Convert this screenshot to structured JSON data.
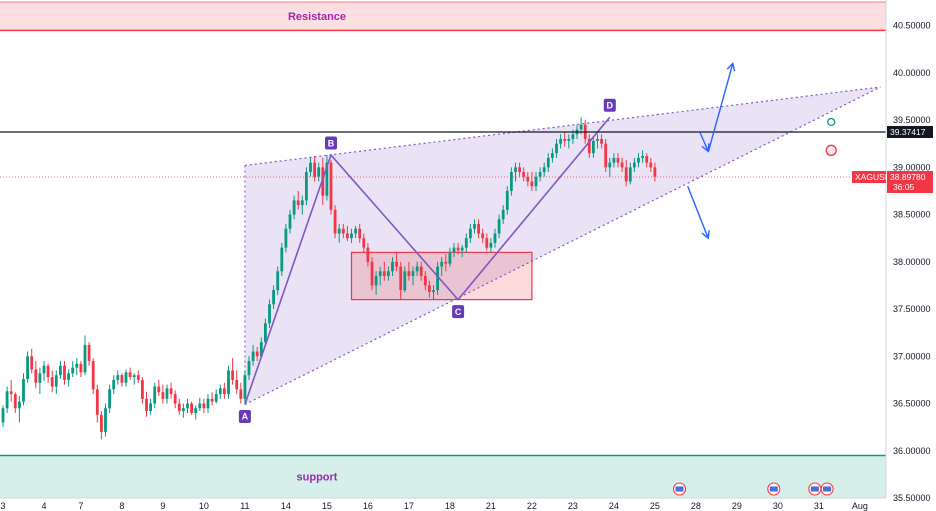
{
  "chart_data": {
    "type": "candlestick",
    "symbol": "XAGUSD",
    "last_price": "38.89780",
    "countdown": "36:05",
    "reference_line": "39.37417",
    "y_axis": {
      "range": [
        35.5,
        40.75
      ],
      "ticks": [
        "40.50000",
        "40.00000",
        "39.50000",
        "39.00000",
        "38.50000",
        "38.00000",
        "37.50000",
        "37.00000",
        "36.50000",
        "36.00000",
        "35.50000"
      ],
      "tick_values": [
        40.5,
        40.0,
        39.5,
        39.0,
        38.5,
        38.0,
        37.5,
        37.0,
        36.5,
        36.0,
        35.5
      ]
    },
    "x_axis": {
      "ticks": [
        "3",
        "4",
        "7",
        "8",
        "9",
        "10",
        "11",
        "14",
        "15",
        "16",
        "17",
        "18",
        "21",
        "22",
        "23",
        "24",
        "25",
        "28",
        "29",
        "30",
        "31",
        "Aug"
      ],
      "tick_index": [
        0,
        10,
        19,
        29,
        39,
        49,
        59,
        69,
        79,
        89,
        99,
        109,
        119,
        129,
        139,
        149,
        159,
        169,
        179,
        189,
        199,
        209
      ]
    },
    "zones": [
      {
        "label": "Resistance",
        "from": 40.45,
        "to": 40.75,
        "color": "#f23645"
      },
      {
        "label": "support",
        "from": 35.5,
        "to": 35.95,
        "color": "#089981"
      }
    ],
    "consolidation_box": {
      "x": [
        85,
        129
      ],
      "y": [
        37.6,
        38.1
      ]
    },
    "pattern_points": [
      {
        "label": "A",
        "x": 59,
        "y": 36.49
      },
      {
        "label": "B",
        "x": 80,
        "y": 39.13
      },
      {
        "label": "C",
        "x": 111,
        "y": 37.6
      },
      {
        "label": "D",
        "x": 148,
        "y": 39.53
      }
    ],
    "wedge": {
      "upper": {
        "x": [
          59,
          214
        ],
        "y": [
          39.02,
          39.85
        ]
      },
      "lower": {
        "x": [
          59,
          214
        ],
        "y": [
          36.49,
          39.85
        ]
      }
    },
    "scenario_arrows": [
      {
        "from": [
          172,
          39.16
        ],
        "to": [
          178,
          40.1
        ]
      },
      {
        "from": [
          170,
          39.37
        ],
        "to": [
          172,
          39.17
        ]
      },
      {
        "from": [
          167,
          38.8
        ],
        "to": [
          172,
          38.25
        ]
      }
    ],
    "markers": [
      {
        "x": 202,
        "y": 39.48,
        "color": "#089981"
      },
      {
        "x": 202,
        "y": 39.18,
        "color": "#f23645"
      }
    ],
    "event_icons_x": [
      165,
      188,
      198,
      201
    ],
    "candles": [
      [
        36.3,
        36.48,
        36.25,
        36.45
      ],
      [
        36.45,
        36.68,
        36.4,
        36.63
      ],
      [
        36.63,
        36.75,
        36.52,
        36.6
      ],
      [
        36.6,
        36.62,
        36.4,
        36.45
      ],
      [
        36.45,
        36.58,
        36.3,
        36.52
      ],
      [
        36.52,
        36.82,
        36.48,
        36.76
      ],
      [
        36.76,
        37.05,
        36.72,
        37.0
      ],
      [
        37.0,
        37.08,
        36.82,
        36.86
      ],
      [
        36.86,
        36.95,
        36.66,
        36.72
      ],
      [
        36.72,
        36.88,
        36.6,
        36.82
      ],
      [
        36.82,
        36.95,
        36.74,
        36.9
      ],
      [
        36.9,
        36.92,
        36.72,
        36.78
      ],
      [
        36.78,
        36.85,
        36.62,
        36.68
      ],
      [
        36.68,
        36.85,
        36.6,
        36.8
      ],
      [
        36.8,
        36.95,
        36.76,
        36.9
      ],
      [
        36.9,
        36.95,
        36.7,
        36.75
      ],
      [
        36.75,
        36.86,
        36.68,
        36.82
      ],
      [
        36.82,
        36.95,
        36.78,
        36.88
      ],
      [
        36.88,
        36.98,
        36.8,
        36.92
      ],
      [
        36.92,
        36.95,
        36.78,
        36.83
      ],
      [
        36.83,
        37.22,
        36.8,
        37.12
      ],
      [
        37.12,
        37.15,
        36.9,
        36.95
      ],
      [
        36.95,
        36.98,
        36.6,
        36.65
      ],
      [
        36.65,
        36.7,
        36.3,
        36.38
      ],
      [
        36.38,
        36.42,
        36.12,
        36.2
      ],
      [
        36.2,
        36.5,
        36.15,
        36.45
      ],
      [
        36.45,
        36.7,
        36.4,
        36.65
      ],
      [
        36.65,
        36.8,
        36.6,
        36.75
      ],
      [
        36.75,
        36.85,
        36.7,
        36.8
      ],
      [
        36.8,
        36.82,
        36.68,
        36.72
      ],
      [
        36.72,
        36.86,
        36.68,
        36.83
      ],
      [
        36.83,
        36.88,
        36.75,
        36.78
      ],
      [
        36.78,
        36.82,
        36.7,
        36.8
      ],
      [
        36.8,
        36.85,
        36.72,
        36.75
      ],
      [
        36.75,
        36.78,
        36.5,
        36.55
      ],
      [
        36.55,
        36.62,
        36.36,
        36.42
      ],
      [
        36.42,
        36.55,
        36.38,
        36.5
      ],
      [
        36.5,
        36.72,
        36.45,
        36.68
      ],
      [
        36.68,
        36.75,
        36.58,
        36.62
      ],
      [
        36.62,
        36.7,
        36.5,
        36.55
      ],
      [
        36.55,
        36.7,
        36.5,
        36.66
      ],
      [
        36.66,
        36.72,
        36.55,
        36.6
      ],
      [
        36.6,
        36.64,
        36.45,
        36.5
      ],
      [
        36.5,
        36.55,
        36.38,
        36.42
      ],
      [
        36.42,
        36.5,
        36.35,
        36.45
      ],
      [
        36.45,
        36.55,
        36.4,
        36.5
      ],
      [
        36.5,
        36.52,
        36.38,
        36.4
      ],
      [
        36.4,
        36.48,
        36.33,
        36.45
      ],
      [
        36.45,
        36.56,
        36.42,
        36.5
      ],
      [
        36.5,
        36.55,
        36.4,
        36.45
      ],
      [
        36.45,
        36.6,
        36.4,
        36.55
      ],
      [
        36.55,
        36.62,
        36.48,
        36.52
      ],
      [
        36.52,
        36.65,
        36.5,
        36.6
      ],
      [
        36.6,
        36.7,
        36.55,
        36.66
      ],
      [
        36.66,
        36.72,
        36.55,
        36.6
      ],
      [
        36.6,
        36.9,
        36.55,
        36.85
      ],
      [
        36.85,
        36.98,
        36.7,
        36.75
      ],
      [
        36.75,
        36.85,
        36.6,
        36.65
      ],
      [
        36.65,
        36.72,
        36.5,
        36.55
      ],
      [
        36.55,
        36.85,
        36.49,
        36.8
      ],
      [
        36.8,
        37.0,
        36.75,
        36.95
      ],
      [
        36.95,
        37.12,
        36.9,
        37.05
      ],
      [
        37.05,
        37.1,
        36.95,
        37.0
      ],
      [
        37.0,
        37.2,
        36.98,
        37.15
      ],
      [
        37.15,
        37.4,
        37.1,
        37.35
      ],
      [
        37.35,
        37.6,
        37.3,
        37.55
      ],
      [
        37.55,
        37.75,
        37.5,
        37.7
      ],
      [
        37.7,
        37.95,
        37.65,
        37.9
      ],
      [
        37.9,
        38.2,
        37.85,
        38.15
      ],
      [
        38.15,
        38.4,
        38.1,
        38.35
      ],
      [
        38.35,
        38.55,
        38.3,
        38.5
      ],
      [
        38.5,
        38.7,
        38.45,
        38.65
      ],
      [
        38.65,
        38.75,
        38.55,
        38.6
      ],
      [
        38.6,
        38.7,
        38.5,
        38.65
      ],
      [
        38.65,
        39.0,
        38.6,
        38.95
      ],
      [
        38.95,
        39.1,
        38.9,
        39.05
      ],
      [
        39.05,
        39.12,
        38.85,
        38.9
      ],
      [
        38.9,
        39.05,
        38.85,
        39.0
      ],
      [
        39.0,
        39.1,
        38.6,
        38.7
      ],
      [
        38.7,
        39.13,
        38.65,
        39.05
      ],
      [
        39.05,
        39.08,
        38.5,
        38.55
      ],
      [
        38.55,
        38.6,
        38.25,
        38.3
      ],
      [
        38.3,
        38.4,
        38.2,
        38.35
      ],
      [
        38.35,
        38.4,
        38.25,
        38.3
      ],
      [
        38.3,
        38.38,
        38.22,
        38.25
      ],
      [
        38.25,
        38.35,
        38.2,
        38.3
      ],
      [
        38.3,
        38.38,
        38.25,
        38.35
      ],
      [
        38.35,
        38.4,
        38.2,
        38.25
      ],
      [
        38.25,
        38.3,
        38.1,
        38.15
      ],
      [
        38.15,
        38.2,
        37.95,
        38.0
      ],
      [
        38.0,
        38.05,
        37.7,
        37.75
      ],
      [
        37.75,
        37.9,
        37.65,
        37.85
      ],
      [
        37.85,
        37.95,
        37.75,
        37.9
      ],
      [
        37.9,
        38.0,
        37.8,
        37.85
      ],
      [
        37.85,
        37.95,
        37.8,
        37.9
      ],
      [
        37.9,
        38.05,
        37.85,
        38.0
      ],
      [
        38.0,
        38.1,
        37.9,
        37.95
      ],
      [
        37.95,
        38.0,
        37.6,
        37.7
      ],
      [
        37.7,
        37.95,
        37.68,
        37.9
      ],
      [
        37.9,
        38.0,
        37.8,
        37.85
      ],
      [
        37.85,
        37.95,
        37.75,
        37.9
      ],
      [
        37.9,
        38.0,
        37.85,
        37.95
      ],
      [
        37.95,
        38.0,
        37.8,
        37.85
      ],
      [
        37.85,
        37.9,
        37.7,
        37.75
      ],
      [
        37.75,
        37.8,
        37.62,
        37.68
      ],
      [
        37.68,
        37.75,
        37.6,
        37.7
      ],
      [
        37.7,
        38.0,
        37.65,
        37.95
      ],
      [
        37.95,
        38.05,
        37.85,
        38.0
      ],
      [
        38.0,
        38.08,
        37.9,
        37.98
      ],
      [
        37.98,
        38.15,
        37.95,
        38.1
      ],
      [
        38.1,
        38.2,
        38.05,
        38.15
      ],
      [
        38.15,
        38.2,
        38.08,
        38.12
      ],
      [
        38.12,
        38.18,
        38.05,
        38.15
      ],
      [
        38.15,
        38.3,
        38.1,
        38.25
      ],
      [
        38.25,
        38.4,
        38.2,
        38.35
      ],
      [
        38.35,
        38.45,
        38.3,
        38.4
      ],
      [
        38.4,
        38.45,
        38.25,
        38.3
      ],
      [
        38.3,
        38.35,
        38.2,
        38.25
      ],
      [
        38.25,
        38.3,
        38.12,
        38.15
      ],
      [
        38.15,
        38.25,
        38.1,
        38.2
      ],
      [
        38.2,
        38.35,
        38.15,
        38.3
      ],
      [
        38.3,
        38.5,
        38.25,
        38.45
      ],
      [
        38.45,
        38.6,
        38.4,
        38.55
      ],
      [
        38.55,
        38.8,
        38.5,
        38.75
      ],
      [
        38.75,
        39.0,
        38.7,
        38.95
      ],
      [
        38.95,
        39.05,
        38.85,
        39.0
      ],
      [
        39.0,
        39.05,
        38.9,
        38.95
      ],
      [
        38.95,
        39.0,
        38.85,
        38.9
      ],
      [
        38.9,
        38.95,
        38.8,
        38.85
      ],
      [
        38.85,
        38.95,
        38.75,
        38.8
      ],
      [
        38.8,
        38.95,
        38.75,
        38.9
      ],
      [
        38.9,
        39.0,
        38.85,
        38.95
      ],
      [
        38.95,
        39.05,
        38.9,
        39.0
      ],
      [
        39.0,
        39.15,
        38.95,
        39.1
      ],
      [
        39.1,
        39.2,
        39.05,
        39.15
      ],
      [
        39.15,
        39.3,
        39.1,
        39.25
      ],
      [
        39.25,
        39.35,
        39.2,
        39.3
      ],
      [
        39.3,
        39.38,
        39.22,
        39.28
      ],
      [
        39.28,
        39.35,
        39.2,
        39.3
      ],
      [
        39.3,
        39.4,
        39.25,
        39.35
      ],
      [
        39.35,
        39.45,
        39.3,
        39.4
      ],
      [
        39.4,
        39.53,
        39.35,
        39.45
      ],
      [
        39.45,
        39.5,
        39.25,
        39.3
      ],
      [
        39.3,
        39.35,
        39.1,
        39.15
      ],
      [
        39.15,
        39.32,
        39.1,
        39.28
      ],
      [
        39.28,
        39.35,
        39.2,
        39.3
      ],
      [
        39.3,
        39.35,
        39.2,
        39.25
      ],
      [
        39.25,
        39.3,
        38.95,
        39.0
      ],
      [
        39.0,
        39.1,
        38.9,
        39.05
      ],
      [
        39.05,
        39.15,
        39.0,
        39.1
      ],
      [
        39.1,
        39.15,
        39.0,
        39.05
      ],
      [
        39.05,
        39.1,
        38.95,
        39.0
      ],
      [
        39.0,
        39.08,
        38.8,
        38.85
      ],
      [
        38.85,
        39.05,
        38.82,
        39.0
      ],
      [
        39.0,
        39.1,
        38.95,
        39.05
      ],
      [
        39.05,
        39.15,
        39.0,
        39.1
      ],
      [
        39.1,
        39.18,
        39.05,
        39.12
      ],
      [
        39.12,
        39.15,
        39.0,
        39.05
      ],
      [
        39.05,
        39.1,
        38.95,
        39.0
      ],
      [
        39.0,
        39.05,
        38.85,
        38.9
      ]
    ]
  }
}
